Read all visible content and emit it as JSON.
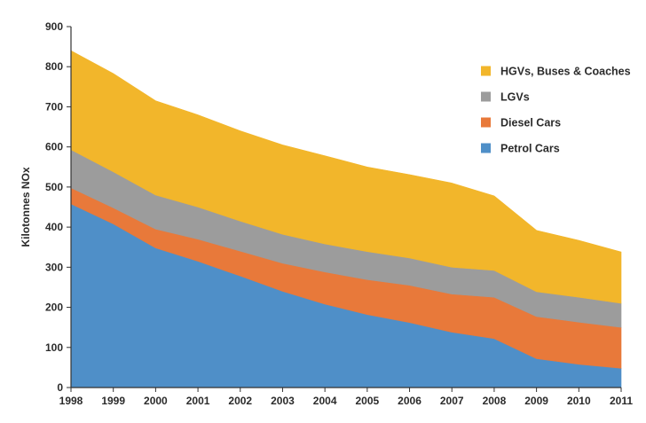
{
  "chart_data": {
    "type": "area",
    "stacked": true,
    "title": "",
    "xlabel": "",
    "ylabel": "Kilotonnes NOx",
    "ylim": [
      0,
      900
    ],
    "yticks": [
      0,
      100,
      200,
      300,
      400,
      500,
      600,
      700,
      800,
      900
    ],
    "x": [
      "1998",
      "1999",
      "2000",
      "2001",
      "2002",
      "2003",
      "2004",
      "2005",
      "2006",
      "2007",
      "2008",
      "2009",
      "2010",
      "2011"
    ],
    "grid": false,
    "legend_position": "top-right",
    "series": [
      {
        "name": "Petrol Cars",
        "color": "#4f8fc8",
        "values": [
          458,
          408,
          348,
          315,
          278,
          240,
          208,
          182,
          162,
          138,
          122,
          72,
          58,
          48
        ]
      },
      {
        "name": "Diesel Cars",
        "color": "#e8793a",
        "values": [
          40,
          40,
          47,
          55,
          62,
          70,
          80,
          87,
          93,
          95,
          103,
          105,
          105,
          102
        ]
      },
      {
        "name": "LGVs",
        "color": "#9c9c9c",
        "values": [
          95,
          90,
          85,
          80,
          75,
          72,
          70,
          70,
          68,
          67,
          67,
          62,
          62,
          60
        ]
      },
      {
        "name": "HGVs, Buses & Coaches",
        "color": "#f2b62b",
        "values": [
          247,
          245,
          235,
          230,
          225,
          223,
          220,
          211,
          208,
          210,
          186,
          153,
          142,
          128
        ]
      }
    ],
    "legend_order": [
      "HGVs, Buses & Coaches",
      "LGVs",
      "Diesel Cars",
      "Petrol Cars"
    ]
  }
}
